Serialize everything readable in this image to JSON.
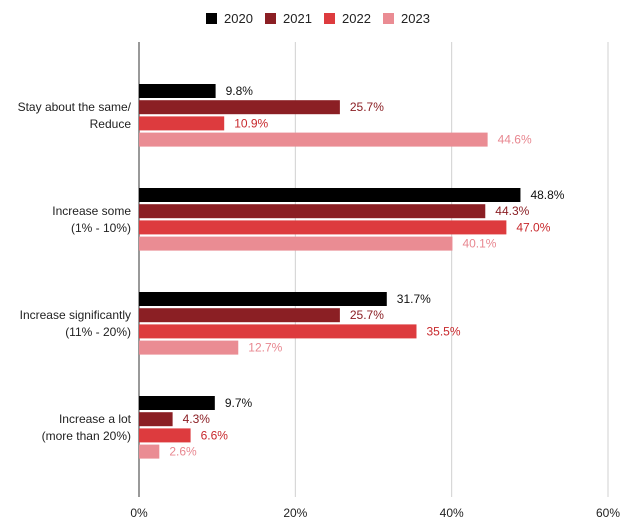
{
  "chart_data": {
    "type": "bar",
    "orientation": "horizontal",
    "categories": [
      [
        "Stay about the same/",
        "Reduce"
      ],
      [
        "Increase some",
        "(1% - 10%)"
      ],
      [
        "Increase significantly",
        "(11% - 20%)"
      ],
      [
        "Increase a lot",
        "(more than 20%)"
      ]
    ],
    "series": [
      {
        "name": "2020",
        "color": "#000000",
        "label_color": "#111111",
        "values": [
          9.8,
          48.8,
          31.7,
          9.7
        ]
      },
      {
        "name": "2021",
        "color": "#8b1f24",
        "label_color": "#8b1f24",
        "values": [
          25.7,
          44.3,
          25.7,
          4.3
        ]
      },
      {
        "name": "2022",
        "color": "#dd3b3e",
        "label_color": "#c8282c",
        "values": [
          10.9,
          47.0,
          35.5,
          6.6
        ]
      },
      {
        "name": "2023",
        "color": "#ea8c93",
        "label_color": "#e88790",
        "values": [
          44.6,
          40.1,
          12.7,
          2.6
        ]
      }
    ],
    "value_format": "{v}%",
    "xlim": [
      0,
      60
    ],
    "xticks": [
      0,
      20,
      40,
      60
    ],
    "xtick_labels": [
      "0%",
      "20%",
      "40%",
      "60%"
    ],
    "grid": true,
    "legend_position": "top"
  }
}
